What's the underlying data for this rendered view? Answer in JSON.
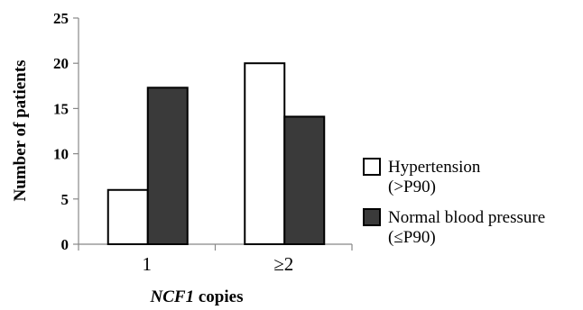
{
  "chart_data": {
    "type": "bar",
    "categories": [
      "1",
      "≥2"
    ],
    "series": [
      {
        "name": "Hypertension (>P90)",
        "label_lines": [
          "Hypertension",
          "(>P90)"
        ],
        "values": [
          6,
          20
        ],
        "color": "#ffffff"
      },
      {
        "name": "Normal blood pressure (≤P90)",
        "label_lines": [
          "Normal blood pressure",
          "(≤P90)"
        ],
        "values": [
          17.3,
          14.1
        ],
        "color": "#3a3a3a"
      }
    ],
    "ylim": [
      0,
      25
    ],
    "yticks": [
      0,
      5,
      10,
      15,
      20,
      25
    ],
    "ylabel": "Number of patients",
    "xlabel_italic": "NCF1",
    "xlabel_rest": " copies",
    "legend_position": "right",
    "grid": false
  }
}
